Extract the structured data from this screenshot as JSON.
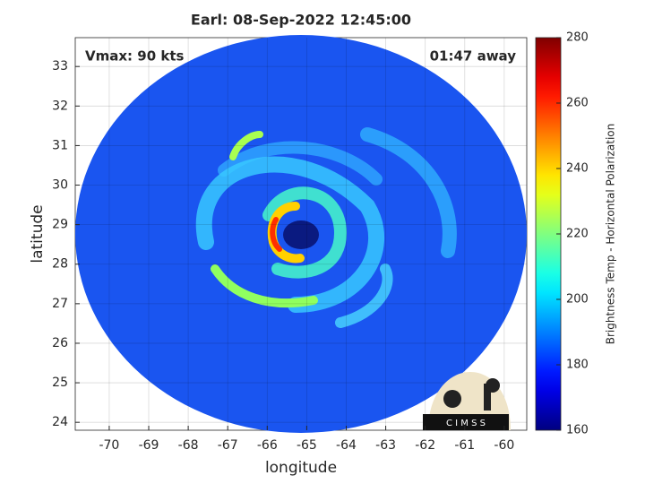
{
  "chart_data": {
    "type": "heatmap",
    "title": "Earl: 08-Sep-2022 12:45:00",
    "annotations": [
      "Vmax: 90 kts",
      "01:47 away"
    ],
    "x_label": "longitude",
    "y_label": "latitude",
    "xlim": [
      -70.86,
      -59.43
    ],
    "xticks": [
      -70,
      -69,
      -68,
      -67,
      -66,
      -65,
      -64,
      -63,
      -62,
      -61,
      -60
    ],
    "ylim": [
      23.8,
      33.73
    ],
    "yticks": [
      24,
      25,
      26,
      27,
      28,
      29,
      30,
      31,
      32,
      33
    ],
    "grid": true,
    "colormap": "jet",
    "colorbar_label": "Brightness Temp - Horizontal Polarization",
    "clim": [
      160,
      280
    ],
    "colorbar_ticks": [
      160,
      180,
      200,
      220,
      240,
      260,
      280
    ],
    "logo_text": "C I M S S"
  }
}
